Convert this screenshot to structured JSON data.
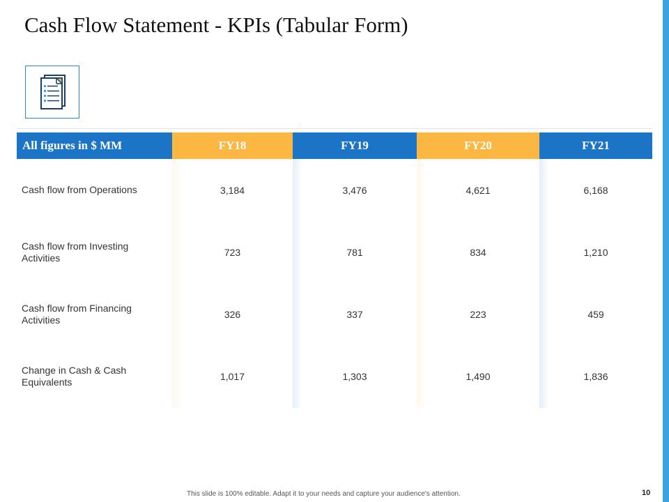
{
  "title": "Cash Flow Statement - KPIs (Tabular Form)",
  "icon": "document-icon",
  "table": {
    "headers": [
      "All figures in $ MM",
      "FY18",
      "FY19",
      "FY20",
      "FY21"
    ],
    "rows": [
      {
        "label": "Cash flow from Operations",
        "values": [
          "3,184",
          "3,476",
          "4,621",
          "6,168"
        ]
      },
      {
        "label": "Cash flow from Investing Activities",
        "values": [
          "723",
          "781",
          "834",
          "1,210"
        ]
      },
      {
        "label": "Cash flow from Financing Activities",
        "values": [
          "326",
          "337",
          "223",
          "459"
        ]
      },
      {
        "label": "Change in Cash & Cash Equivalents",
        "values": [
          "1,017",
          "1,303",
          "1,490",
          "1,836"
        ]
      }
    ]
  },
  "colors": {
    "header_blue": "#1b74c6",
    "header_orange": "#fbb741",
    "accent_bar": "#3aa3e3"
  },
  "footer": {
    "note": "This slide is 100% editable.  Adapt it to your needs and capture your audience's attention.",
    "page": "10"
  }
}
